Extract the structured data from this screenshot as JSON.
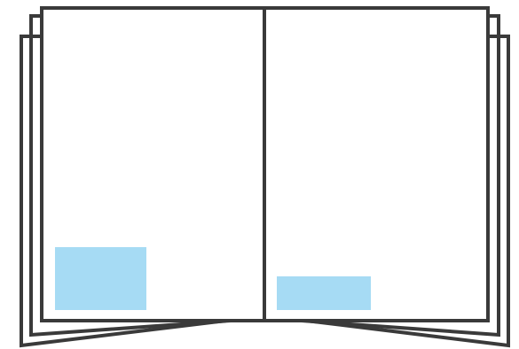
{
  "illustration": {
    "subject": "open-book",
    "colors": {
      "line": "#3a3a3a",
      "page": "#ffffff",
      "highlight": "#a6dbf4"
    }
  }
}
